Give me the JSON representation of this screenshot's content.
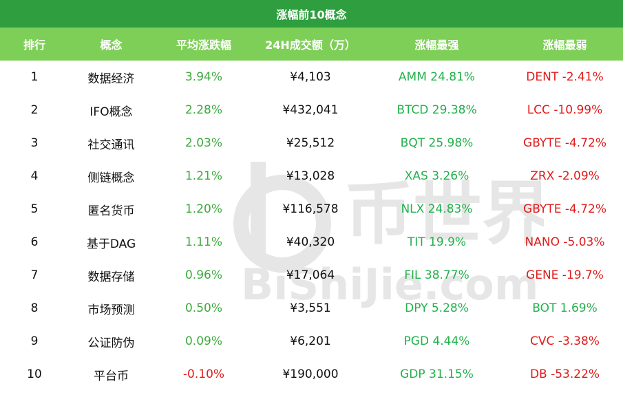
{
  "title": "涨幅前10概念",
  "headers": [
    "排行",
    "概念",
    "平均涨跌幅",
    "24H成交额（万）",
    "涨幅最强",
    "涨幅最弱"
  ],
  "rows": [
    {
      "rank": "1",
      "concept": "数据经济",
      "avg_change": "3.94%",
      "volume": "¥4,103",
      "strongest": "AMM 24.81%",
      "weakest": "DENT -2.41%"
    },
    {
      "rank": "2",
      "concept": "IFO概念",
      "avg_change": "2.28%",
      "volume": "¥432,041",
      "strongest": "BTCD 29.38%",
      "weakest": "LCC -10.99%"
    },
    {
      "rank": "3",
      "concept": "社交通讯",
      "avg_change": "2.03%",
      "volume": "¥25,512",
      "strongest": "BQT 25.98%",
      "weakest": "GBYTE -4.72%"
    },
    {
      "rank": "4",
      "concept": "侧链概念",
      "avg_change": "1.21%",
      "volume": "¥13,028",
      "strongest": "XAS 3.26%",
      "weakest": "ZRX -2.09%"
    },
    {
      "rank": "5",
      "concept": "匿名货币",
      "avg_change": "1.20%",
      "volume": "¥116,578",
      "strongest": "NLX 24.83%",
      "weakest": "GBYTE -4.72%"
    },
    {
      "rank": "6",
      "concept": "基于DAG",
      "avg_change": "1.11%",
      "volume": "¥40,320",
      "strongest": "TIT 19.9%",
      "weakest": "NANO -5.03%"
    },
    {
      "rank": "7",
      "concept": "数据存储",
      "avg_change": "0.96%",
      "volume": "¥17,064",
      "strongest": "FIL 38.77%",
      "weakest": "GENE -19.7%"
    },
    {
      "rank": "8",
      "concept": "市场预测",
      "avg_change": "0.50%",
      "volume": "¥3,551",
      "strongest": "DPY 5.28%",
      "weakest": "BOT 1.69%"
    },
    {
      "rank": "9",
      "concept": "公证防伪",
      "avg_change": "0.09%",
      "volume": "¥6,201",
      "strongest": "PGD 4.44%",
      "weakest": "CVC -3.38%"
    },
    {
      "rank": "10",
      "concept": "平台币",
      "avg_change": "-0.10%",
      "volume": "¥190,000",
      "strongest": "GDP 31.15%",
      "weakest": "DB -53.22%"
    }
  ],
  "watermark": {
    "cn": "币世界",
    "en": "BiShiJie.com"
  },
  "colors": {
    "title_bg": "#2e9e3f",
    "header_bg": "#7ecf58",
    "positive": "#3bab3b",
    "negative": "#e01b1b",
    "strongest": "#22b14c",
    "weakest": "#e01b1b",
    "watermark": "#e6e6e6"
  }
}
